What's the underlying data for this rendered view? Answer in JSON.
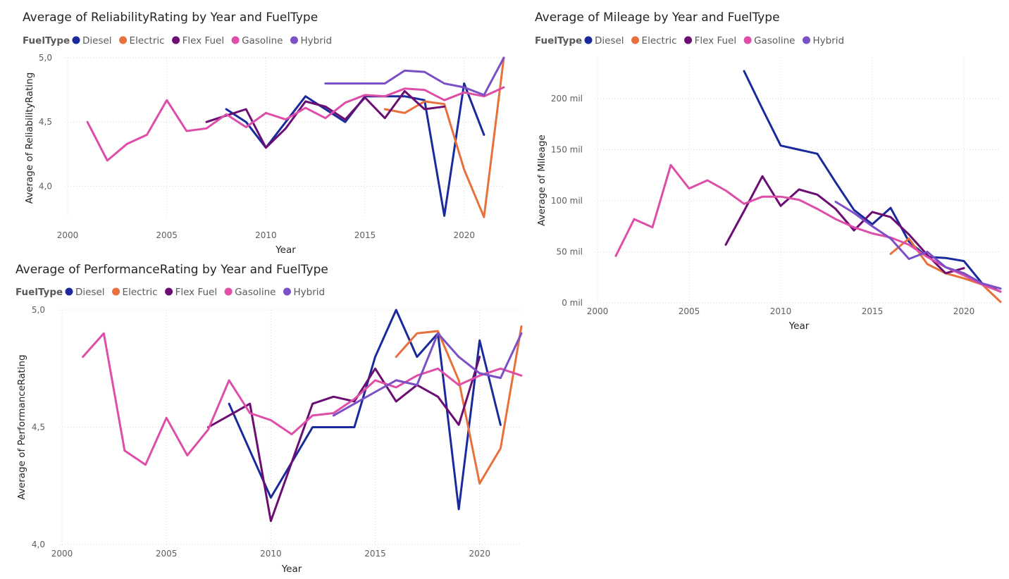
{
  "colors": {
    "Diesel": "#1a2a9c",
    "Electric": "#e8703c",
    "Flex Fuel": "#6b0d72",
    "Gasoline": "#de4ea8",
    "Hybrid": "#7b4fc6"
  },
  "chart_data": [
    {
      "id": "reliability",
      "type": "line",
      "title": "Average of ReliabilityRating by Year and FuelType",
      "legend_title": "FuelType",
      "xlabel": "Year",
      "ylabel": "Average of ReliabilityRating",
      "xlim": [
        2000,
        2022
      ],
      "ylim": [
        3.75,
        5.0
      ],
      "xticks": [
        2000,
        2005,
        2010,
        2015,
        2020
      ],
      "yticks": [
        4.0,
        4.5,
        5.0
      ],
      "ytick_labels": [
        "4,0",
        "4,5",
        "5,0"
      ],
      "series": [
        {
          "name": "Diesel",
          "x": [
            2008,
            2009,
            2010,
            2011,
            2012,
            2013,
            2014,
            2015,
            2016,
            2017,
            2018,
            2019,
            2020,
            2021
          ],
          "y": [
            4.6,
            4.5,
            4.3,
            4.5,
            4.7,
            4.6,
            4.5,
            4.7,
            4.7,
            4.7,
            4.67,
            3.77,
            4.8,
            4.4
          ]
        },
        {
          "name": "Electric",
          "x": [
            2016,
            2017,
            2018,
            2019,
            2020,
            2021,
            2022
          ],
          "y": [
            4.6,
            4.57,
            4.66,
            4.64,
            4.13,
            3.76,
            5.0
          ]
        },
        {
          "name": "Flex Fuel",
          "x": [
            2007,
            2008,
            2009,
            2010,
            2011,
            2012,
            2013,
            2014,
            2015,
            2016,
            2017,
            2018,
            2019
          ],
          "y": [
            4.5,
            4.55,
            4.6,
            4.3,
            4.45,
            4.66,
            4.62,
            4.52,
            4.69,
            4.53,
            4.74,
            4.6,
            4.62
          ]
        },
        {
          "name": "Gasoline",
          "x": [
            2001,
            2002,
            2003,
            2004,
            2005,
            2006,
            2007,
            2008,
            2009,
            2010,
            2011,
            2012,
            2013,
            2014,
            2015,
            2016,
            2017,
            2018,
            2019,
            2020,
            2021,
            2022
          ],
          "y": [
            4.5,
            4.2,
            4.33,
            4.4,
            4.67,
            4.43,
            4.45,
            4.56,
            4.46,
            4.57,
            4.52,
            4.61,
            4.53,
            4.65,
            4.71,
            4.7,
            4.76,
            4.75,
            4.67,
            4.73,
            4.7,
            4.77
          ]
        },
        {
          "name": "Hybrid",
          "x": [
            2013,
            2014,
            2015,
            2016,
            2017,
            2018,
            2019,
            2020,
            2021,
            2022
          ],
          "y": [
            4.8,
            4.8,
            4.8,
            4.8,
            4.9,
            4.89,
            4.8,
            4.77,
            4.71,
            5.0
          ]
        }
      ]
    },
    {
      "id": "mileage",
      "type": "line",
      "title": "Average of Mileage by Year and FuelType",
      "legend_title": "FuelType",
      "xlabel": "Year",
      "ylabel": "Average of Mileage",
      "xlim": [
        2000,
        2022
      ],
      "ylim": [
        0,
        240000
      ],
      "xticks": [
        2000,
        2005,
        2010,
        2015,
        2020
      ],
      "yticks": [
        0,
        50000,
        100000,
        150000,
        200000
      ],
      "ytick_labels": [
        "0 mil",
        "50 mil",
        "100 mil",
        "150 mil",
        "200 mil"
      ],
      "series": [
        {
          "name": "Diesel",
          "x": [
            2008,
            2009,
            2010,
            2011,
            2012,
            2013,
            2014,
            2015,
            2016,
            2017,
            2018,
            2019,
            2020,
            2021,
            2022
          ],
          "y": [
            227000,
            190000,
            154000,
            150000,
            146000,
            118000,
            91000,
            77000,
            93000,
            60000,
            45000,
            44000,
            41000,
            19000,
            11000
          ]
        },
        {
          "name": "Electric",
          "x": [
            2016,
            2017,
            2018,
            2019,
            2020,
            2021,
            2022
          ],
          "y": [
            48000,
            63000,
            38000,
            29000,
            24000,
            18000,
            1000
          ]
        },
        {
          "name": "Flex Fuel",
          "x": [
            2007,
            2008,
            2009,
            2010,
            2011,
            2012,
            2013,
            2014,
            2015,
            2016,
            2017,
            2018,
            2019,
            2020
          ],
          "y": [
            57000,
            90000,
            124000,
            95000,
            111000,
            106000,
            92000,
            71000,
            89000,
            84000,
            67000,
            47000,
            29000,
            34000
          ]
        },
        {
          "name": "Gasoline",
          "x": [
            2001,
            2002,
            2003,
            2004,
            2005,
            2006,
            2007,
            2008,
            2009,
            2010,
            2011,
            2012,
            2013,
            2014,
            2015,
            2016,
            2017,
            2018,
            2019,
            2020,
            2021,
            2022
          ],
          "y": [
            46000,
            82000,
            74000,
            135000,
            112000,
            120000,
            110000,
            97000,
            104000,
            104000,
            101000,
            92000,
            82000,
            74000,
            68000,
            64000,
            57000,
            45000,
            35000,
            27000,
            18000,
            11000
          ]
        },
        {
          "name": "Hybrid",
          "x": [
            2013,
            2014,
            2015,
            2016,
            2017,
            2018,
            2019,
            2020,
            2021,
            2022
          ],
          "y": [
            99000,
            88000,
            75000,
            63000,
            43000,
            50000,
            35000,
            29000,
            19000,
            14000
          ]
        }
      ]
    },
    {
      "id": "performance",
      "type": "line",
      "title": "Average of PerformanceRating by Year and FuelType",
      "legend_title": "FuelType",
      "xlabel": "Year",
      "ylabel": "Average of PerformanceRating",
      "xlim": [
        2000,
        2022
      ],
      "ylim": [
        4.0,
        5.0
      ],
      "xticks": [
        2000,
        2005,
        2010,
        2015,
        2020
      ],
      "yticks": [
        4.0,
        4.5,
        5.0
      ],
      "ytick_labels": [
        "4,0",
        "4,5",
        "5,0"
      ],
      "series": [
        {
          "name": "Diesel",
          "x": [
            2008,
            2009,
            2010,
            2011,
            2012,
            2013,
            2014,
            2015,
            2016,
            2017,
            2018,
            2019,
            2020,
            2021
          ],
          "y": [
            4.6,
            4.4,
            4.2,
            4.35,
            4.5,
            4.5,
            4.5,
            4.8,
            5.0,
            4.8,
            4.9,
            4.15,
            4.87,
            4.51
          ]
        },
        {
          "name": "Electric",
          "x": [
            2016,
            2017,
            2018,
            2019,
            2020,
            2021,
            2022
          ],
          "y": [
            4.8,
            4.9,
            4.91,
            4.7,
            4.26,
            4.41,
            4.93
          ]
        },
        {
          "name": "Flex Fuel",
          "x": [
            2007,
            2008,
            2009,
            2010,
            2011,
            2012,
            2013,
            2014,
            2015,
            2016,
            2017,
            2018,
            2019,
            2020
          ],
          "y": [
            4.5,
            4.55,
            4.6,
            4.1,
            4.35,
            4.6,
            4.63,
            4.61,
            4.75,
            4.61,
            4.68,
            4.63,
            4.51,
            4.8
          ]
        },
        {
          "name": "Gasoline",
          "x": [
            2001,
            2002,
            2003,
            2004,
            2005,
            2006,
            2007,
            2008,
            2009,
            2010,
            2011,
            2012,
            2013,
            2014,
            2015,
            2016,
            2017,
            2018,
            2019,
            2020,
            2021,
            2022
          ],
          "y": [
            4.8,
            4.9,
            4.4,
            4.34,
            4.54,
            4.38,
            4.49,
            4.7,
            4.56,
            4.53,
            4.47,
            4.55,
            4.56,
            4.62,
            4.7,
            4.67,
            4.72,
            4.75,
            4.68,
            4.72,
            4.75,
            4.72
          ]
        },
        {
          "name": "Hybrid",
          "x": [
            2013,
            2014,
            2015,
            2016,
            2017,
            2018,
            2019,
            2020,
            2021,
            2022
          ],
          "y": [
            4.55,
            4.6,
            4.65,
            4.7,
            4.68,
            4.9,
            4.8,
            4.73,
            4.71,
            4.9
          ]
        }
      ]
    }
  ]
}
